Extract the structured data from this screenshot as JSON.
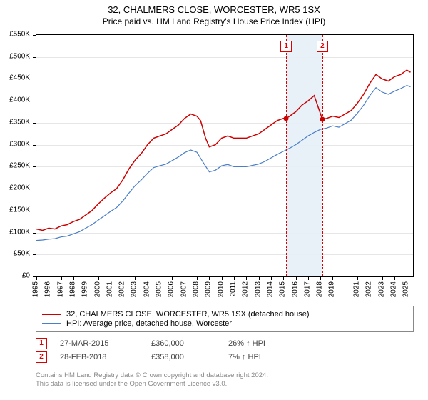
{
  "title": "32, CHALMERS CLOSE, WORCESTER, WR5 1SX",
  "subtitle": "Price paid vs. HM Land Registry's House Price Index (HPI)",
  "chart": {
    "type": "line",
    "background_color": "#ffffff",
    "grid_color": "#e6e6e6",
    "border_color": "#000000",
    "ylim": [
      0,
      550000
    ],
    "ytick_step": 50000,
    "ytick_labels": [
      "£0",
      "£50K",
      "£100K",
      "£150K",
      "£200K",
      "£250K",
      "£300K",
      "£350K",
      "£400K",
      "£450K",
      "£500K",
      "£550K"
    ],
    "x_years": [
      1995,
      1996,
      1997,
      1998,
      1999,
      2000,
      2001,
      2002,
      2003,
      2004,
      2005,
      2006,
      2007,
      2008,
      2009,
      2010,
      2011,
      2012,
      2013,
      2014,
      2015,
      2016,
      2017,
      2018,
      2019,
      2021,
      2022,
      2023,
      2024,
      2025
    ],
    "xlim": [
      1995,
      2025.5
    ],
    "highlight_band": {
      "from": 2015.23,
      "to": 2018.16,
      "color": "#e6eef7"
    },
    "series": [
      {
        "name": "32, CHALMERS CLOSE, WORCESTER, WR5 1SX (detached house)",
        "color": "#cc0000",
        "line_width": 1.5,
        "values_by_year": {
          "1995": 108000,
          "1995.5": 105000,
          "1996": 110000,
          "1996.5": 108000,
          "1997": 115000,
          "1997.5": 118000,
          "1998": 125000,
          "1998.5": 130000,
          "1999": 140000,
          "1999.5": 150000,
          "2000": 165000,
          "2000.5": 178000,
          "2001": 190000,
          "2001.5": 200000,
          "2002": 220000,
          "2002.5": 245000,
          "2003": 265000,
          "2003.5": 280000,
          "2004": 300000,
          "2004.5": 315000,
          "2005": 320000,
          "2005.5": 325000,
          "2006": 335000,
          "2006.5": 345000,
          "2007": 360000,
          "2007.5": 370000,
          "2008": 365000,
          "2008.3": 355000,
          "2008.7": 315000,
          "2009": 295000,
          "2009.5": 300000,
          "2010": 315000,
          "2010.5": 320000,
          "2011": 315000,
          "2011.5": 315000,
          "2012": 315000,
          "2012.5": 320000,
          "2013": 325000,
          "2013.5": 335000,
          "2014": 345000,
          "2014.5": 355000,
          "2015": 360000,
          "2015.23": 360000,
          "2015.5": 365000,
          "2016": 375000,
          "2016.5": 390000,
          "2017": 400000,
          "2017.5": 412000,
          "2018.16": 358000,
          "2018.5": 360000,
          "2019": 365000,
          "2019.5": 362000,
          "2020": 370000,
          "2020.5": 378000,
          "2021": 395000,
          "2021.5": 415000,
          "2022": 440000,
          "2022.5": 460000,
          "2023": 450000,
          "2023.5": 445000,
          "2024": 455000,
          "2024.5": 460000,
          "2025": 470000,
          "2025.3": 465000
        }
      },
      {
        "name": "HPI: Average price, detached house, Worcester",
        "color": "#4a7ec8",
        "line_width": 1.2,
        "values_by_year": {
          "1995": 82000,
          "1995.5": 83000,
          "1996": 85000,
          "1996.5": 86000,
          "1997": 90000,
          "1997.5": 92000,
          "1998": 97000,
          "1998.5": 102000,
          "1999": 110000,
          "1999.5": 118000,
          "2000": 128000,
          "2000.5": 138000,
          "2001": 148000,
          "2001.5": 157000,
          "2002": 172000,
          "2002.5": 190000,
          "2003": 207000,
          "2003.5": 220000,
          "2004": 235000,
          "2004.5": 248000,
          "2005": 252000,
          "2005.5": 256000,
          "2006": 264000,
          "2006.5": 272000,
          "2007": 282000,
          "2007.5": 288000,
          "2008": 283000,
          "2008.5": 260000,
          "2009": 238000,
          "2009.5": 242000,
          "2010": 252000,
          "2010.5": 255000,
          "2011": 250000,
          "2011.5": 250000,
          "2012": 250000,
          "2012.5": 253000,
          "2013": 256000,
          "2013.5": 262000,
          "2014": 270000,
          "2014.5": 278000,
          "2015": 285000,
          "2015.5": 292000,
          "2016": 300000,
          "2016.5": 310000,
          "2017": 320000,
          "2017.5": 328000,
          "2018": 335000,
          "2018.5": 338000,
          "2019": 343000,
          "2019.5": 340000,
          "2020": 348000,
          "2020.5": 356000,
          "2021": 372000,
          "2021.5": 390000,
          "2022": 412000,
          "2022.5": 430000,
          "2023": 420000,
          "2023.5": 415000,
          "2024": 422000,
          "2024.5": 428000,
          "2025": 435000,
          "2025.3": 432000
        }
      }
    ],
    "sale_markers": [
      {
        "n": "1",
        "year": 2015.23,
        "price": 360000,
        "dot_color": "#cc0000"
      },
      {
        "n": "2",
        "year": 2018.16,
        "price": 358000,
        "dot_color": "#cc0000"
      }
    ],
    "label_fontsize": 10,
    "title_fontsize": 13
  },
  "legend": {
    "items": [
      {
        "color": "#cc0000",
        "label": "32, CHALMERS CLOSE, WORCESTER, WR5 1SX (detached house)"
      },
      {
        "color": "#4a7ec8",
        "label": "HPI: Average price, detached house, Worcester"
      }
    ]
  },
  "sales": [
    {
      "n": "1",
      "date": "27-MAR-2015",
      "price": "£360,000",
      "hpi": "26% ↑ HPI"
    },
    {
      "n": "2",
      "date": "28-FEB-2018",
      "price": "£358,000",
      "hpi": "7% ↑ HPI"
    }
  ],
  "footnote_line1": "Contains HM Land Registry data © Crown copyright and database right 2024.",
  "footnote_line2": "This data is licensed under the Open Government Licence v3.0."
}
